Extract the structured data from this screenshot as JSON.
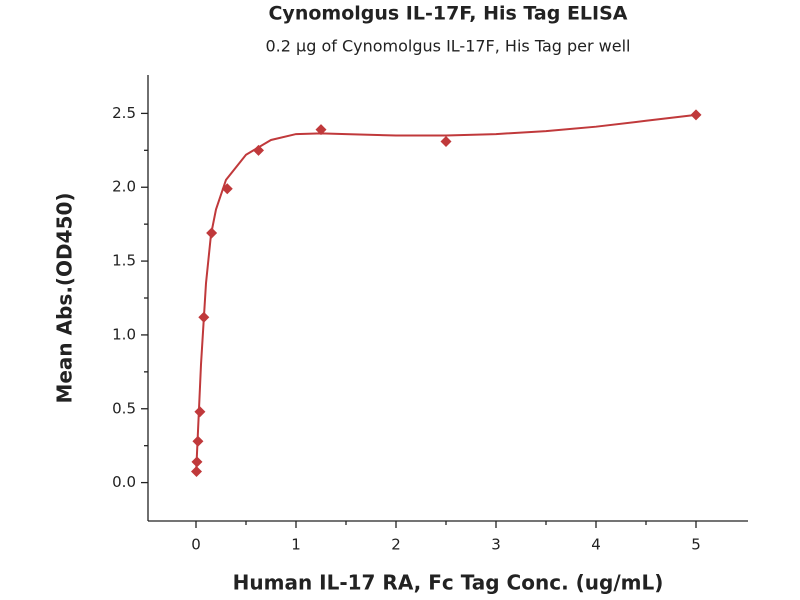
{
  "chart_data": {
    "type": "scatter",
    "title": "Cynomolgus IL-17F, His Tag ELISA",
    "subtitle": "0.2 μg of Cynomolgus IL-17F, His Tag per well",
    "x_label": "Human IL-17 RA, Fc Tag Conc. (ug/mL)",
    "y_label": "Mean Abs.(OD450)",
    "xlim": [
      -0.48,
      5.52
    ],
    "ylim": [
      -0.26,
      2.76
    ],
    "xticks": [
      0,
      1,
      2,
      3,
      4,
      5
    ],
    "xminorticks": [
      0.5,
      1.5,
      2.5,
      3.5,
      4.5
    ],
    "yticks": [
      {
        "value": 0,
        "label": "0.0"
      },
      0.5,
      {
        "value": 1,
        "label": "1.0"
      },
      1.5,
      {
        "value": 2,
        "label": "2.0"
      },
      2.5
    ],
    "yminorticks": [
      0.25,
      0.75,
      1.25,
      1.75,
      2.25
    ],
    "series": [
      {
        "type": "scatter",
        "color": "#c0393b",
        "x": [
          5,
          2.5,
          1.25,
          0.625,
          0.3125,
          0.15625,
          0.078,
          0.039,
          0.0195,
          0.0098,
          0.0049
        ],
        "values": [
          2.49,
          2.31,
          2.39,
          2.25,
          1.99,
          1.69,
          1.12,
          0.48,
          0.28,
          0.14,
          0.075
        ]
      },
      {
        "type": "line",
        "color": "#c0393b",
        "x": [
          0,
          0.02,
          0.05,
          0.1,
          0.15,
          0.2,
          0.3,
          0.5,
          0.75,
          1,
          1.25,
          1.5,
          2,
          2.5,
          3,
          3.5,
          4,
          4.5,
          5
        ],
        "values": [
          0.05,
          0.35,
          0.8,
          1.35,
          1.68,
          1.85,
          2.05,
          2.22,
          2.32,
          2.36,
          2.365,
          2.36,
          2.35,
          2.35,
          2.36,
          2.38,
          2.41,
          2.45,
          2.49
        ]
      }
    ]
  }
}
